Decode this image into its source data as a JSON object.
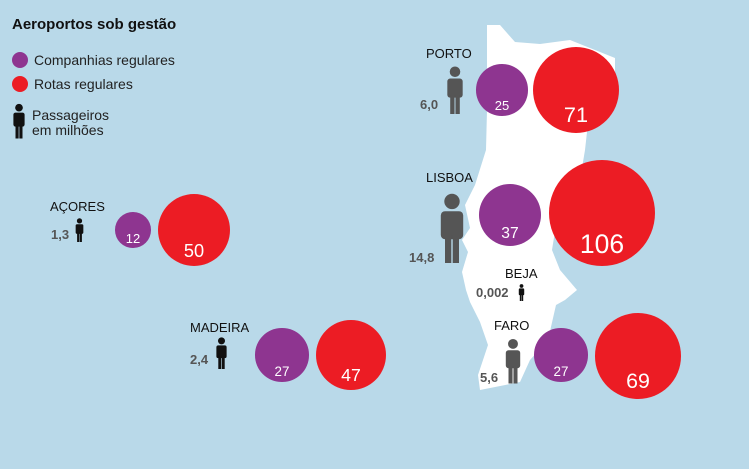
{
  "legend": {
    "title": "Aeroportos sob gestão",
    "items": [
      {
        "label": "Companhias regulares",
        "color": "#8e3590"
      },
      {
        "label": "Rotas regulares",
        "color": "#ec1c24"
      }
    ],
    "passengers_line1": "Passageiros",
    "passengers_line2": "em milhões"
  },
  "chart_data": {
    "type": "bubble-map",
    "title": "Aeroportos sob gestão",
    "series": [
      {
        "name": "Companhias regulares",
        "color": "#8e3590"
      },
      {
        "name": "Rotas regulares",
        "color": "#ec1c24"
      },
      {
        "name": "Passageiros em milhões"
      }
    ],
    "airports": [
      {
        "name": "PORTO",
        "companhias": 25,
        "rotas": 71,
        "passageiros": "6,0"
      },
      {
        "name": "LISBOA",
        "companhias": 37,
        "rotas": 106,
        "passageiros": "14,8"
      },
      {
        "name": "BEJA",
        "companhias": null,
        "rotas": null,
        "passageiros": "0,002"
      },
      {
        "name": "FARO",
        "companhias": 27,
        "rotas": 69,
        "passageiros": "5,6"
      },
      {
        "name": "AÇORES",
        "companhias": 12,
        "rotas": 50,
        "passageiros": "1,3"
      },
      {
        "name": "MADEIRA",
        "companhias": 27,
        "rotas": 47,
        "passageiros": "2,4"
      }
    ]
  }
}
